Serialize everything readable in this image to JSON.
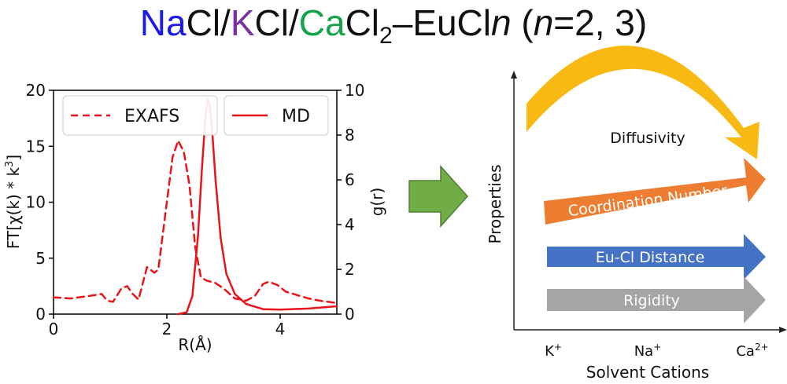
{
  "title": {
    "na": "Na",
    "na_color": "#1a1ae6",
    "cl1": "Cl/",
    "k": "K",
    "k_color": "#7a2fa3",
    "cl2": "Cl/",
    "ca": "Ca",
    "ca_color": "#16a34a",
    "cl3": "Cl",
    "sub2": "2",
    "eucl": "–EuCl",
    "n_italic": "n",
    "paren_open": " (",
    "n_italic2": "n",
    "paren_rest": "=2, 3)"
  },
  "chart_data": [
    {
      "type": "line",
      "xlabel": "R(Å)",
      "ylabel": "FT[χ(k) * k",
      "ylabel_sup": "3",
      "ylabel_close": "]",
      "y2label": "g(r)",
      "xlim": [
        0,
        5
      ],
      "ylim": [
        0,
        20
      ],
      "y2lim": [
        0,
        10
      ],
      "x_ticks": [
        0,
        2,
        4
      ],
      "y_ticks": [
        0,
        5,
        10,
        15,
        20
      ],
      "y2_ticks": [
        0,
        2,
        4,
        6,
        8,
        10
      ],
      "line_color": "#e8141a",
      "series": [
        {
          "name": "EXAFS",
          "axis": "left",
          "style": "dashed",
          "x": [
            0,
            0.3,
            0.6,
            0.85,
            0.95,
            1.05,
            1.2,
            1.3,
            1.4,
            1.5,
            1.65,
            1.78,
            1.85,
            2.0,
            2.1,
            2.2,
            2.3,
            2.4,
            2.5,
            2.6,
            2.7,
            2.85,
            3.0,
            3.2,
            3.4,
            3.55,
            3.7,
            3.8,
            3.95,
            4.1,
            4.3,
            4.5,
            4.7,
            5.0
          ],
          "y": [
            1.5,
            1.4,
            1.6,
            1.8,
            1.2,
            1.1,
            2.3,
            2.5,
            1.8,
            1.3,
            4.2,
            3.7,
            4.0,
            10.0,
            14.0,
            15.5,
            14.5,
            11.5,
            6.0,
            3.3,
            3.0,
            2.8,
            2.3,
            1.4,
            1.2,
            1.6,
            2.7,
            2.9,
            2.6,
            2.0,
            1.7,
            1.4,
            1.2,
            1.0
          ]
        },
        {
          "name": "MD",
          "axis": "right",
          "style": "solid",
          "x": [
            2.2,
            2.35,
            2.45,
            2.55,
            2.62,
            2.68,
            2.72,
            2.76,
            2.8,
            2.86,
            2.95,
            3.05,
            3.2,
            3.4,
            3.7,
            4.0,
            4.5,
            5.0
          ],
          "y": [
            0,
            0.08,
            0.8,
            3.5,
            6.5,
            8.8,
            9.6,
            9.3,
            8.2,
            6.0,
            3.4,
            1.8,
            0.9,
            0.45,
            0.22,
            0.2,
            0.25,
            0.35
          ]
        }
      ]
    },
    {
      "type": "diagram",
      "ylabel": "Properties",
      "xlabel": "Solvent Cations",
      "categories": [
        {
          "base": "K",
          "sup": "+"
        },
        {
          "base": "Na",
          "sup": "+"
        },
        {
          "base": "Ca",
          "sup": "2+"
        }
      ],
      "trends": [
        {
          "label": "Diffusivity",
          "color": "#f9b913",
          "trend": "decreasing"
        },
        {
          "label": "Coordination Number",
          "color": "#ed7d31",
          "trend": "increasing"
        },
        {
          "label": "Eu-Cl Distance",
          "color": "#4472c4",
          "trend": "increasing"
        },
        {
          "label": "Rigidity",
          "color": "#a5a5a5",
          "trend": "increasing"
        }
      ]
    }
  ],
  "transition_arrow_color": "#70ad47"
}
